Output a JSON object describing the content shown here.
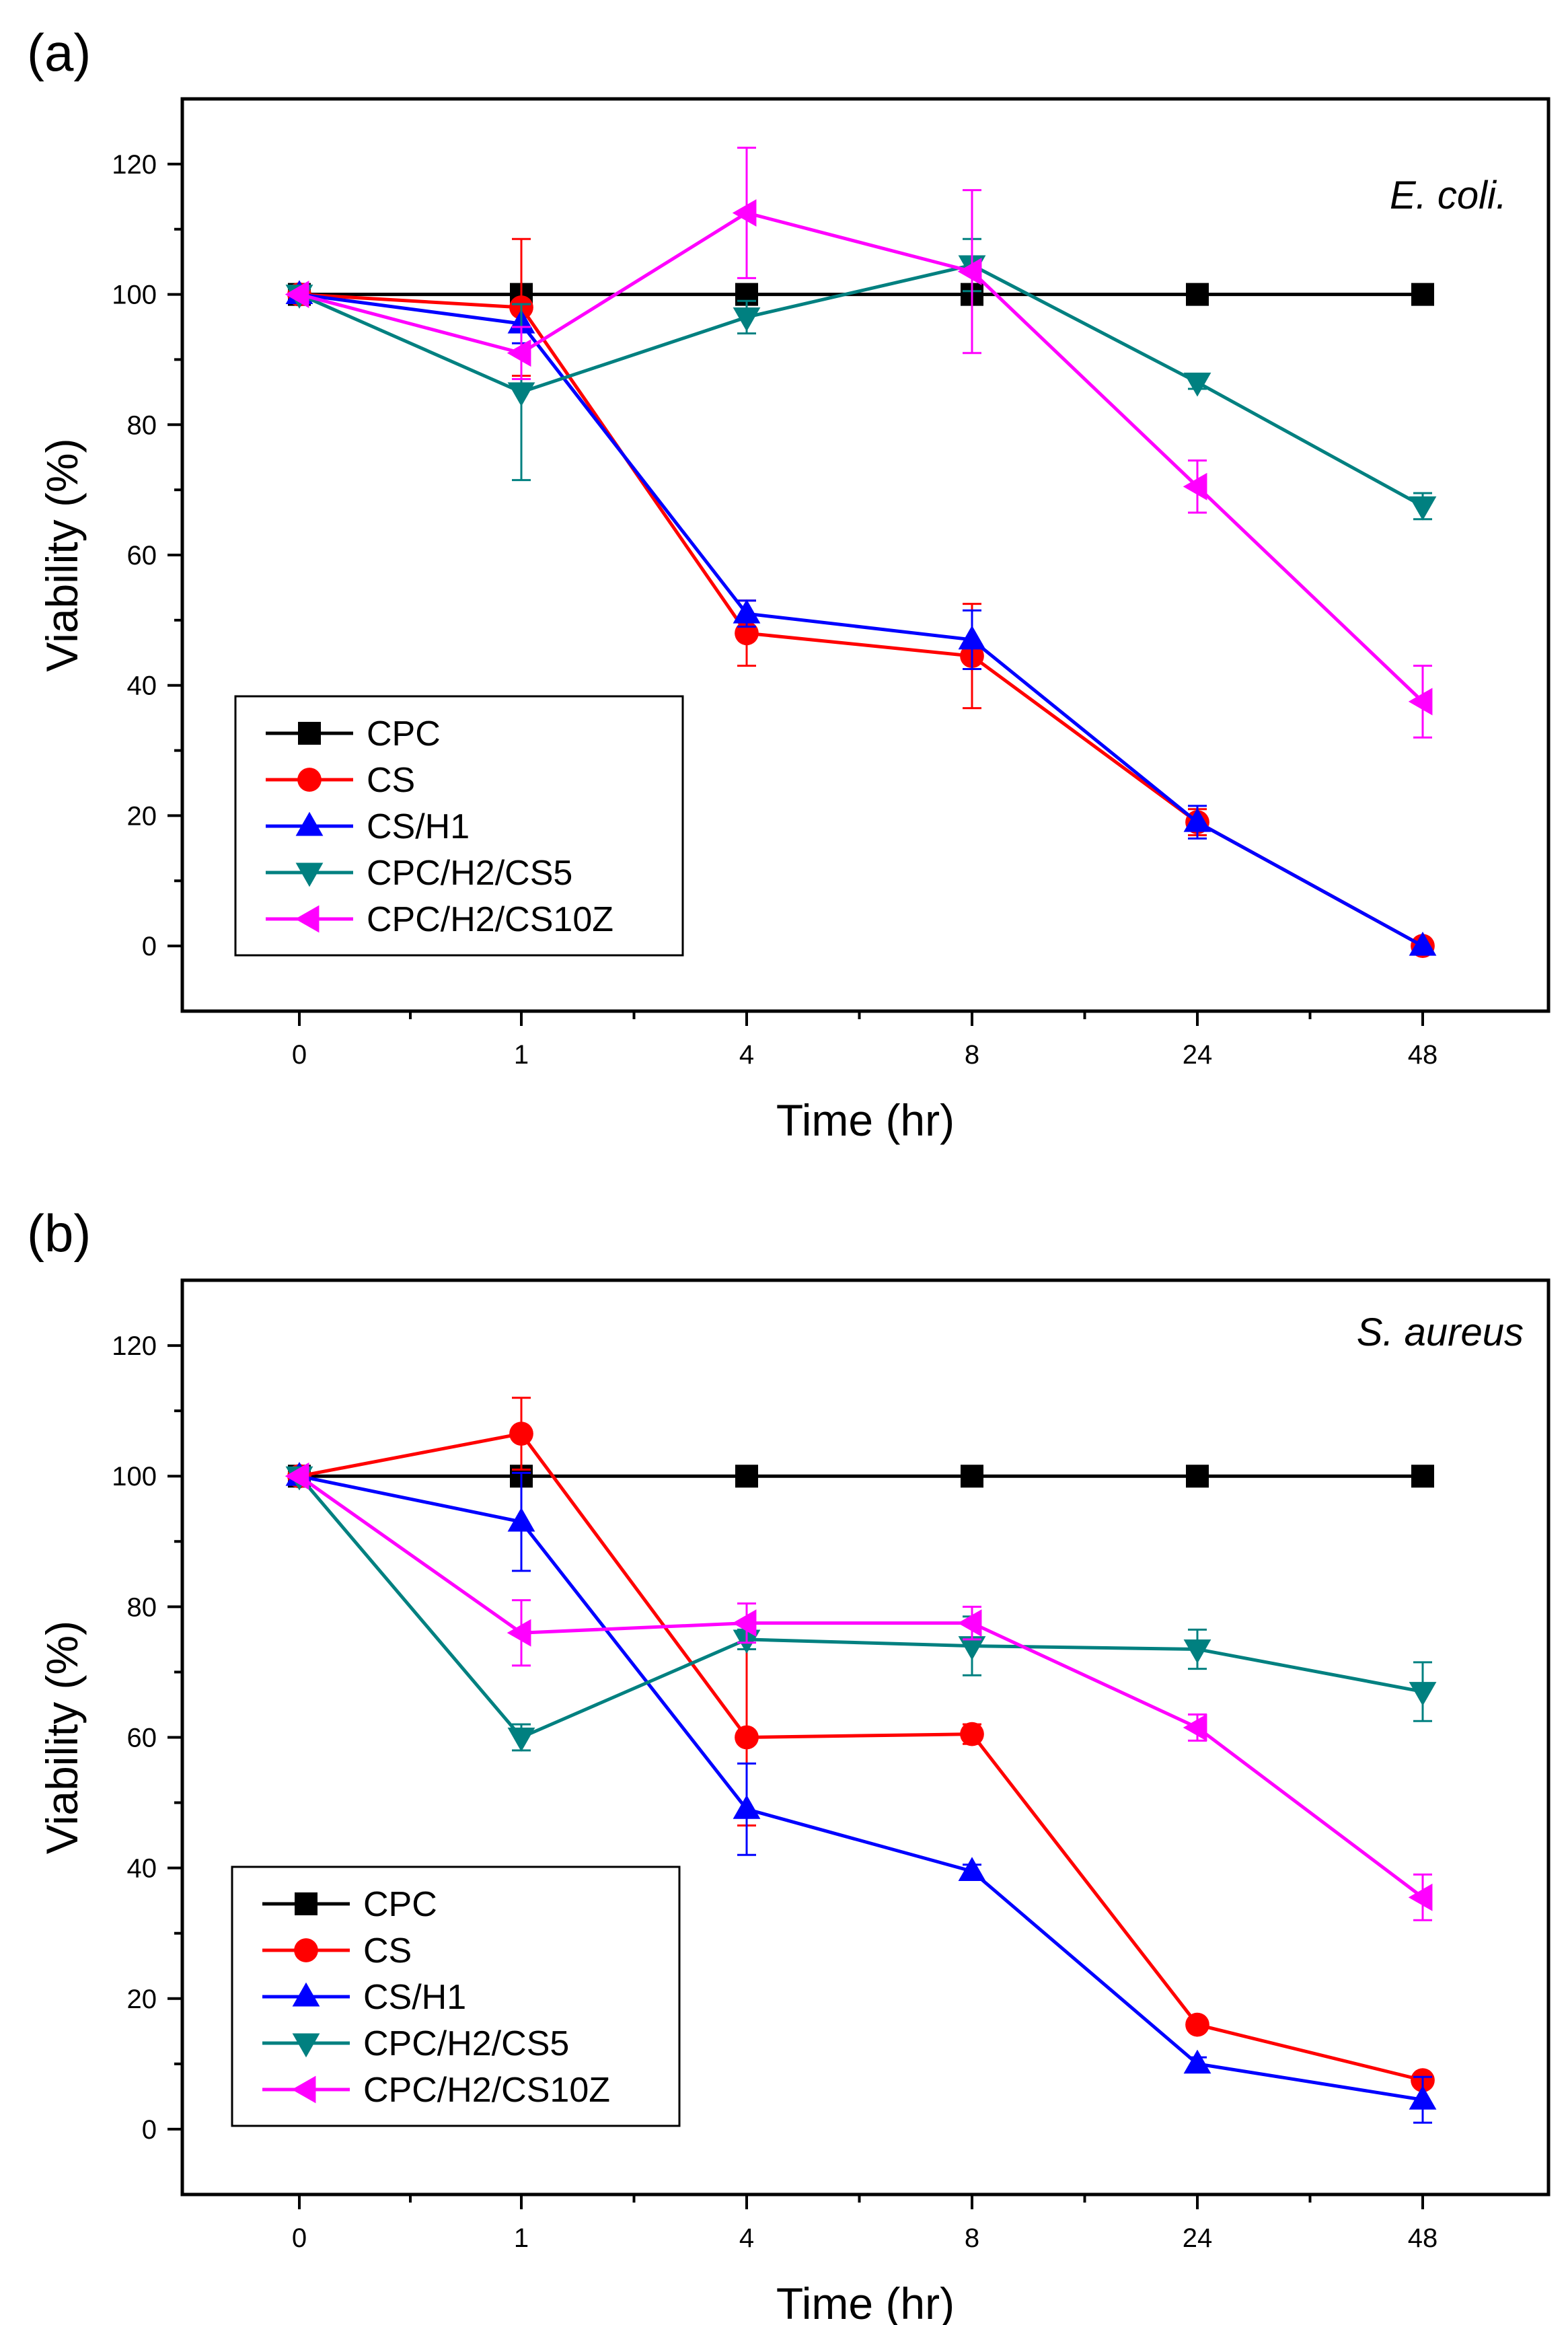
{
  "chart_data": [
    {
      "type": "line",
      "panel_label": "(a)",
      "annotation": "E. coli.",
      "xlabel": "Time (hr)",
      "ylabel": "Viability (%)",
      "categories": [
        "0",
        "1",
        "4",
        "8",
        "24",
        "48"
      ],
      "ylim": [
        -10,
        130
      ],
      "yticks": [
        0,
        20,
        40,
        60,
        80,
        100,
        120
      ],
      "legend_position": "lower-left",
      "series": [
        {
          "name": "CPC",
          "color": "#000000",
          "marker": "square",
          "values": [
            100,
            100,
            100,
            100,
            100,
            100
          ],
          "errors": [
            0,
            0,
            0,
            0,
            0,
            0
          ]
        },
        {
          "name": "CS",
          "color": "#ff0000",
          "marker": "circle",
          "values": [
            100,
            98,
            48,
            44.5,
            19,
            0
          ],
          "errors": [
            0,
            10.5,
            5,
            8,
            2,
            0
          ]
        },
        {
          "name": "CS/H1",
          "color": "#0000ff",
          "marker": "triangle-up",
          "values": [
            100,
            95.5,
            51,
            47,
            19,
            0
          ],
          "errors": [
            0,
            3,
            2,
            4.5,
            2.5,
            0
          ]
        },
        {
          "name": "CPC/H2/CS5",
          "color": "#008080",
          "marker": "triangle-down",
          "values": [
            100,
            85,
            96.5,
            104.5,
            86.5,
            67.5
          ],
          "errors": [
            0,
            13.5,
            2.5,
            4,
            1,
            2
          ]
        },
        {
          "name": "CPC/H2/CS10Z",
          "color": "#ff00ff",
          "marker": "triangle-left",
          "values": [
            100,
            91,
            112.5,
            103.5,
            70.5,
            37.5
          ],
          "errors": [
            0,
            4,
            10,
            12.5,
            4,
            5.5
          ]
        }
      ]
    },
    {
      "type": "line",
      "panel_label": "(b)",
      "annotation": "S. aureus",
      "xlabel": "Time (hr)",
      "ylabel": "Viability (%)",
      "categories": [
        "0",
        "1",
        "4",
        "8",
        "24",
        "48"
      ],
      "ylim": [
        -10,
        130
      ],
      "yticks": [
        0,
        20,
        40,
        60,
        80,
        100,
        120
      ],
      "legend_position": "lower-left",
      "series": [
        {
          "name": "CPC",
          "color": "#000000",
          "marker": "square",
          "values": [
            100,
            100,
            100,
            100,
            100,
            100
          ],
          "errors": [
            0,
            0,
            0,
            0,
            0,
            0
          ]
        },
        {
          "name": "CS",
          "color": "#ff0000",
          "marker": "circle",
          "values": [
            100,
            106.5,
            60,
            60.5,
            16,
            7.5
          ],
          "errors": [
            0,
            5.5,
            13.5,
            1.5,
            0.5,
            0.5
          ]
        },
        {
          "name": "CS/H1",
          "color": "#0000ff",
          "marker": "triangle-up",
          "values": [
            100,
            93,
            49,
            39.5,
            10,
            4.5
          ],
          "errors": [
            0,
            7.5,
            7,
            1,
            1,
            3.5
          ]
        },
        {
          "name": "CPC/H2/CS5",
          "color": "#008080",
          "marker": "triangle-down",
          "values": [
            100,
            60,
            75,
            74,
            73.5,
            67
          ],
          "errors": [
            0,
            2,
            1.5,
            4.5,
            3,
            4.5
          ]
        },
        {
          "name": "CPC/H2/CS10Z",
          "color": "#ff00ff",
          "marker": "triangle-left",
          "values": [
            100,
            76,
            77.5,
            77.5,
            61.5,
            35.5
          ],
          "errors": [
            0,
            5,
            3,
            2.5,
            2,
            3.5
          ]
        }
      ]
    }
  ]
}
